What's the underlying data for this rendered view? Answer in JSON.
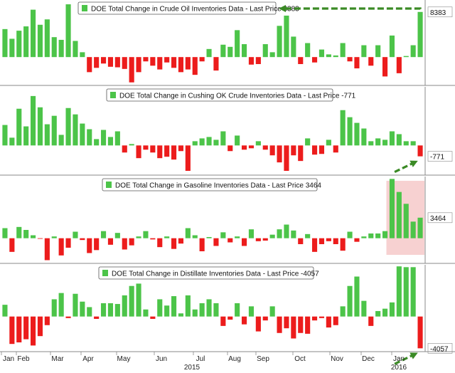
{
  "chart_data": [
    {
      "type": "bar",
      "title": "DOE Total Change in Crude Oil Inventories Data - Last Price 8383",
      "last_label": "8383",
      "ylim": [
        -5000,
        10600
      ],
      "values": [
        5200,
        3400,
        4900,
        5700,
        8800,
        6000,
        7000,
        3700,
        3200,
        9800,
        3000,
        900,
        -2800,
        -2000,
        -1200,
        -1800,
        -1900,
        -2200,
        -4700,
        -2800,
        -800,
        -1600,
        -2300,
        -1000,
        -2000,
        -2800,
        -2300,
        -3300,
        -800,
        1500,
        -2500,
        2300,
        1900,
        5000,
        2400,
        -1400,
        -1300,
        2400,
        900,
        5800,
        7700,
        3800,
        -1300,
        2600,
        -1000,
        1400,
        500,
        300,
        2600,
        -800,
        -2100,
        2200,
        -1600,
        2200,
        -3600,
        4000,
        -3000,
        200,
        2200,
        8383
      ],
      "colors": {
        "up": "#4cc449",
        "down": "#ec1c1c"
      },
      "arrow": "left"
    },
    {
      "type": "bar",
      "title": "DOE Total Change in Cushing OK Crude Inventories Data - Last Price -771",
      "last_label": "-771",
      "ylim": [
        -2000,
        4150
      ],
      "values": [
        1450,
        550,
        2600,
        1350,
        3500,
        2700,
        1500,
        2100,
        750,
        2650,
        2200,
        1550,
        1150,
        450,
        1100,
        600,
        1000,
        -500,
        100,
        -900,
        -300,
        -500,
        -900,
        -800,
        -1000,
        -400,
        -1800,
        300,
        500,
        600,
        400,
        1000,
        -400,
        700,
        -300,
        -200,
        300,
        -300,
        -700,
        -1200,
        -1800,
        -700,
        -1100,
        500,
        -650,
        -600,
        400,
        -500,
        2500,
        2000,
        1600,
        1200,
        300,
        500,
        400,
        1000,
        800,
        300,
        300,
        -771
      ],
      "colors": {
        "up": "#4cc449",
        "down": "#ec1c1c"
      },
      "arrow": "up-right"
    },
    {
      "type": "bar",
      "title": "DOE Total Change in Gasoline Inventories Data - Last Price 3464",
      "last_label": "3464",
      "ylim": [
        -4000,
        10400
      ],
      "values": [
        1700,
        -2300,
        1900,
        1400,
        500,
        -100,
        -3700,
        300,
        -2900,
        -1600,
        1100,
        -300,
        -2500,
        -2000,
        1200,
        -1100,
        900,
        -1900,
        -1200,
        300,
        1200,
        -200,
        -1500,
        300,
        -1800,
        -900,
        1700,
        500,
        -2200,
        200,
        -1300,
        1000,
        -700,
        300,
        -1300,
        1500,
        -500,
        -400,
        600,
        1500,
        2300,
        1300,
        -1000,
        700,
        -2300,
        -1000,
        -500,
        -1000,
        -2100,
        1100,
        -600,
        300,
        800,
        800,
        1200,
        10000,
        7800,
        5800,
        2800,
        3464
      ],
      "colors": {
        "up": "#4cc449",
        "down": "#ec1c1c"
      },
      "highlight": "recent"
    },
    {
      "type": "bar",
      "title": "DOE Total Change in Distillate Inventories Data - Last Price -4057",
      "last_label": "-4057",
      "ylim": [
        -4300,
        6600
      ],
      "values": [
        1500,
        -3500,
        -3300,
        -2900,
        -3700,
        -2500,
        -1100,
        2200,
        3000,
        -200,
        2900,
        1900,
        1200,
        -300,
        1700,
        1700,
        1600,
        2700,
        3900,
        4200,
        900,
        -300,
        2200,
        1400,
        2600,
        400,
        2700,
        900,
        1700,
        2200,
        1700,
        -1200,
        -400,
        1700,
        -1000,
        1300,
        -1900,
        -500,
        1300,
        -2100,
        -1500,
        -2800,
        -2100,
        -2200,
        -500,
        -200,
        -1400,
        -1100,
        1300,
        3900,
        5100,
        2000,
        -1200,
        700,
        1000,
        1800,
        6400,
        6300,
        6300,
        -4057
      ],
      "colors": {
        "up": "#4cc449",
        "down": "#ec1c1c"
      },
      "arrow": "up-right"
    }
  ],
  "axis": {
    "months": [
      "Jan",
      "Feb",
      "Mar",
      "Apr",
      "May",
      "Jun",
      "Jul",
      "Aug",
      "Sep",
      "Oct",
      "Nov",
      "Dec",
      "Jan"
    ],
    "years": [
      "2015",
      "2016"
    ]
  }
}
